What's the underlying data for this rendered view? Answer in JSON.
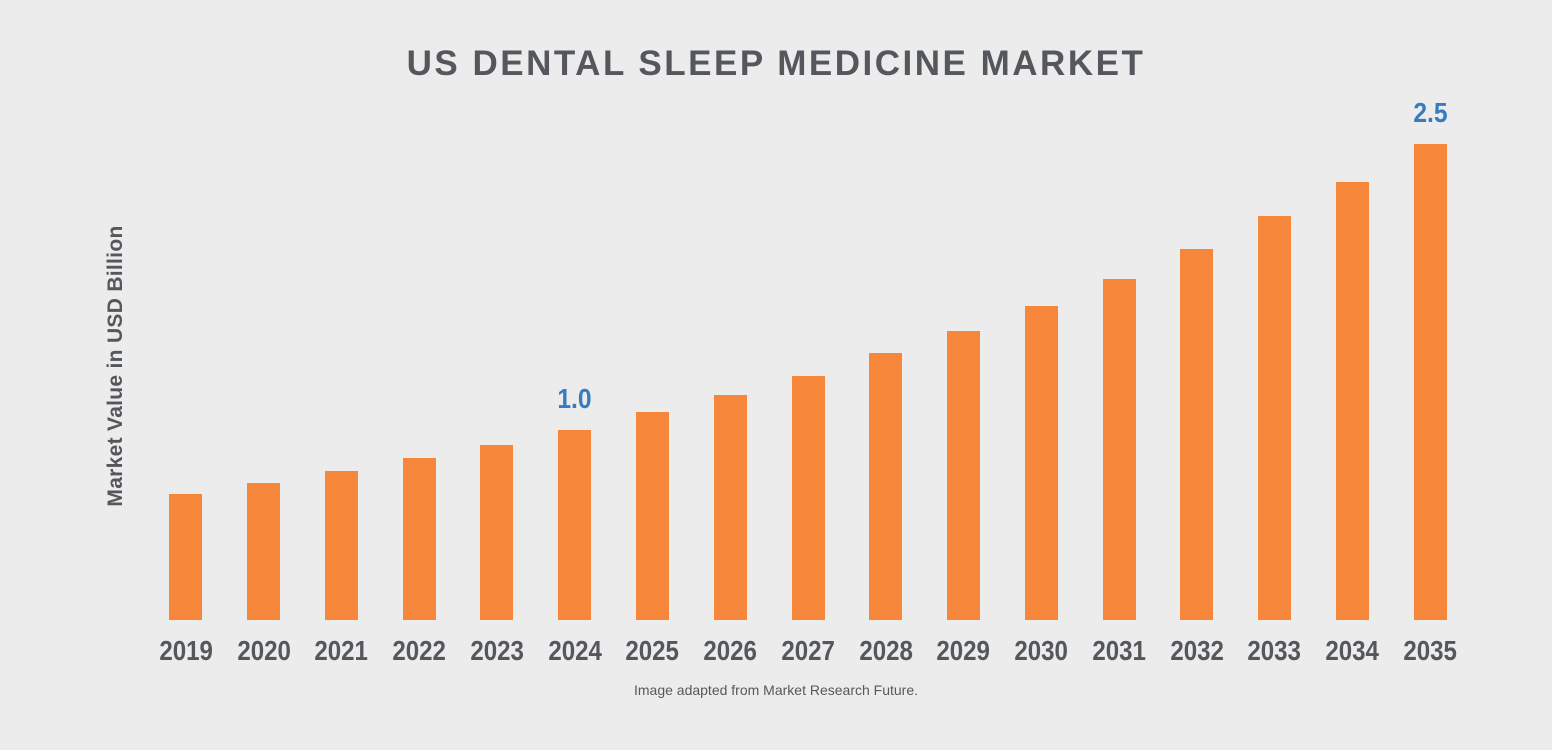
{
  "title": "US DENTAL SLEEP MEDICINE MARKET",
  "y_axis_label": "Market Value in USD Billion",
  "caption": "Image adapted from Market Research Future.",
  "colors": {
    "background": "#ececec",
    "bar_orange": "#f5863a",
    "data_label_blue": "#377cbf",
    "text_dark_gray": "#54575b"
  },
  "chart_data": {
    "type": "bar",
    "title": "US DENTAL SLEEP MEDICINE MARKET",
    "xlabel": "",
    "ylabel": "Market Value in USD Billion",
    "categories": [
      "2019",
      "2020",
      "2021",
      "2022",
      "2023",
      "2024",
      "2025",
      "2026",
      "2027",
      "2028",
      "2029",
      "2030",
      "2031",
      "2032",
      "2033",
      "2034",
      "2035"
    ],
    "values": [
      0.66,
      0.72,
      0.78,
      0.85,
      0.92,
      1.0,
      1.09,
      1.18,
      1.28,
      1.4,
      1.52,
      1.65,
      1.79,
      1.95,
      2.12,
      2.3,
      2.5
    ],
    "point_labels": {
      "2024": "1.0",
      "2035": "2.5"
    },
    "ylim": [
      0,
      2.5
    ],
    "grid": false,
    "legend": "none",
    "bar_color": "#f5863a",
    "annotation": "Image adapted from Market Research Future."
  }
}
